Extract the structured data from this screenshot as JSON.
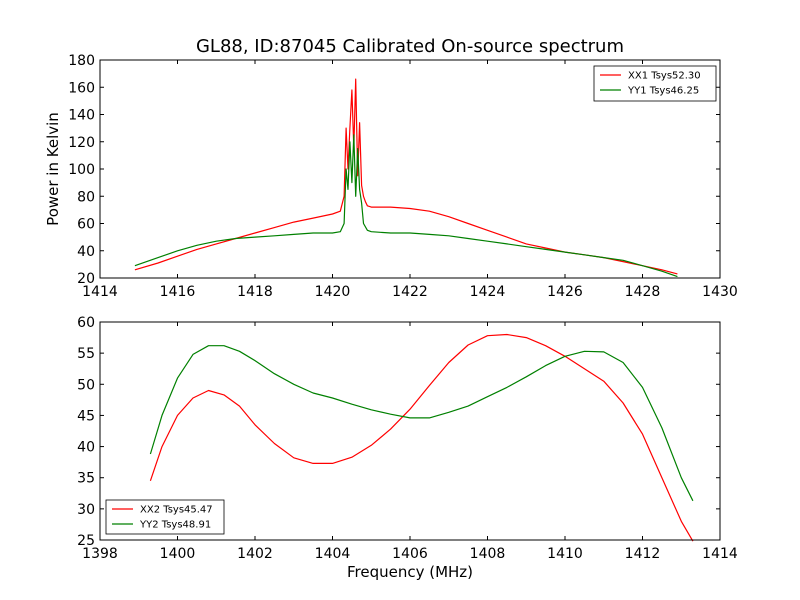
{
  "chart_data": [
    {
      "type": "line",
      "title": "GL88, ID:87045 Calibrated On-source spectrum",
      "xlabel": "",
      "ylabel": "Power in Kelvin",
      "xlim": [
        1414,
        1430
      ],
      "ylim": [
        20,
        180
      ],
      "xticks": [
        1414,
        1416,
        1418,
        1420,
        1422,
        1424,
        1426,
        1428,
        1430
      ],
      "yticks": [
        20,
        40,
        60,
        80,
        100,
        120,
        140,
        160,
        180
      ],
      "legend_position": "top-right",
      "series": [
        {
          "name": "XX1 Tsys52.30",
          "color": "#ff0000",
          "x": [
            1414.9,
            1415.5,
            1416,
            1416.5,
            1417,
            1417.5,
            1418,
            1418.5,
            1419,
            1419.5,
            1420,
            1420.2,
            1420.3,
            1420.35,
            1420.4,
            1420.45,
            1420.5,
            1420.55,
            1420.6,
            1420.65,
            1420.7,
            1420.75,
            1420.8,
            1420.85,
            1420.9,
            1421,
            1421.5,
            1422,
            1422.5,
            1423,
            1423.5,
            1424,
            1424.5,
            1425,
            1425.5,
            1426,
            1426.5,
            1427,
            1427.5,
            1428,
            1428.5,
            1428.9
          ],
          "y": [
            26,
            31,
            36,
            41,
            45,
            49,
            53,
            57,
            61,
            64,
            67,
            69,
            80,
            130,
            100,
            130,
            158,
            115,
            166,
            95,
            134,
            88,
            80,
            76,
            73,
            72,
            72,
            71,
            69,
            65,
            60,
            55,
            50,
            45,
            42,
            39,
            37,
            35,
            32,
            29,
            26,
            23
          ]
        },
        {
          "name": "YY1 Tsys46.25",
          "color": "#008000",
          "x": [
            1414.9,
            1415.5,
            1416,
            1416.5,
            1417,
            1417.5,
            1418,
            1418.5,
            1419,
            1419.5,
            1420,
            1420.2,
            1420.3,
            1420.35,
            1420.4,
            1420.45,
            1420.5,
            1420.55,
            1420.6,
            1420.65,
            1420.7,
            1420.75,
            1420.8,
            1420.9,
            1421,
            1421.5,
            1422,
            1422.5,
            1423,
            1423.5,
            1424,
            1424.5,
            1425,
            1425.5,
            1426,
            1426.5,
            1427,
            1427.5,
            1428,
            1428.5,
            1428.9
          ],
          "y": [
            29,
            35,
            40,
            44,
            47,
            49,
            50,
            51,
            52,
            53,
            53,
            54,
            60,
            100,
            85,
            120,
            90,
            125,
            80,
            115,
            85,
            75,
            60,
            55,
            54,
            53,
            53,
            52,
            51,
            49,
            47,
            45,
            43,
            41,
            39,
            37,
            35,
            33,
            29,
            25,
            21
          ]
        }
      ]
    },
    {
      "type": "line",
      "title": "",
      "xlabel": "Frequency (MHz)",
      "ylabel": "",
      "xlim": [
        1398,
        1414
      ],
      "ylim": [
        25,
        60
      ],
      "xticks": [
        1398,
        1400,
        1402,
        1404,
        1406,
        1408,
        1410,
        1412,
        1414
      ],
      "yticks": [
        25,
        30,
        35,
        40,
        45,
        50,
        55,
        60
      ],
      "legend_position": "bottom-left",
      "series": [
        {
          "name": "XX2 Tsys45.47",
          "color": "#ff0000",
          "x": [
            1399.3,
            1399.6,
            1400,
            1400.4,
            1400.8,
            1401.2,
            1401.6,
            1402,
            1402.5,
            1403,
            1403.5,
            1404,
            1404.5,
            1405,
            1405.5,
            1406,
            1406.5,
            1407,
            1407.5,
            1408,
            1408.5,
            1409,
            1409.5,
            1410,
            1410.5,
            1411,
            1411.5,
            1412,
            1412.5,
            1413,
            1413.3
          ],
          "y": [
            34.5,
            40,
            45,
            47.8,
            49,
            48.3,
            46.5,
            43.5,
            40.5,
            38.2,
            37.3,
            37.3,
            38.3,
            40.2,
            42.8,
            46,
            49.8,
            53.5,
            56.3,
            57.8,
            58,
            57.5,
            56.2,
            54.5,
            52.5,
            50.5,
            47,
            42,
            35,
            28,
            24.8
          ]
        },
        {
          "name": "YY2 Tsys48.91",
          "color": "#008000",
          "x": [
            1399.3,
            1399.6,
            1400,
            1400.4,
            1400.8,
            1401.2,
            1401.6,
            1402,
            1402.5,
            1403,
            1403.5,
            1404,
            1404.5,
            1405,
            1405.5,
            1406,
            1406.5,
            1407,
            1407.5,
            1408,
            1408.5,
            1409,
            1409.5,
            1410,
            1410.5,
            1411,
            1411.5,
            1412,
            1412.5,
            1413,
            1413.3
          ],
          "y": [
            38.8,
            45,
            51,
            54.8,
            56.2,
            56.2,
            55.3,
            53.8,
            51.7,
            50,
            48.6,
            47.8,
            46.8,
            45.9,
            45.2,
            44.6,
            44.6,
            45.5,
            46.5,
            48,
            49.5,
            51.2,
            53,
            54.5,
            55.3,
            55.2,
            53.5,
            49.5,
            43,
            35,
            31.3
          ]
        }
      ]
    }
  ]
}
